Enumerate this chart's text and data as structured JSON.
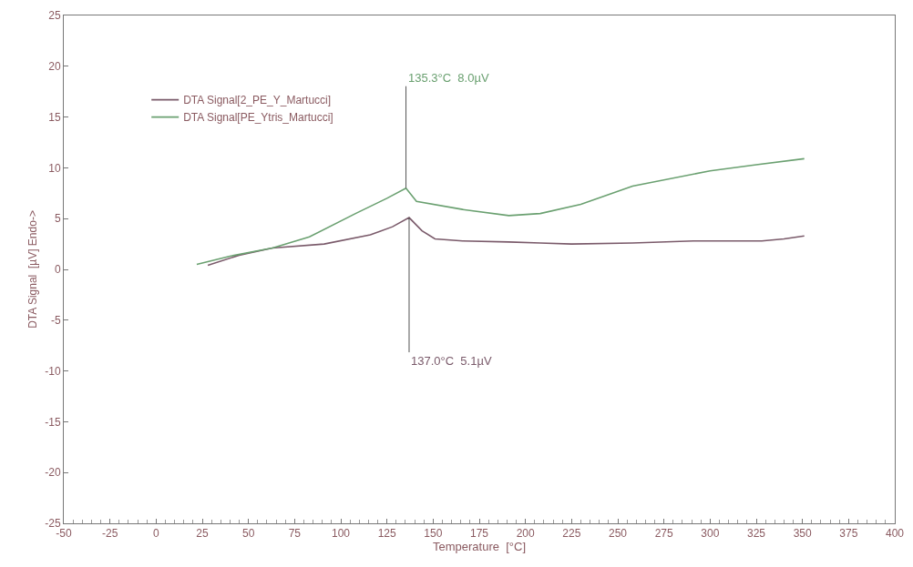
{
  "chart_data": {
    "type": "line",
    "xlabel": "Temperature  [°C]",
    "ylabel": "DTA Signal  [µV] Endo->",
    "xlim": [
      -50,
      400
    ],
    "xticks": [
      -50,
      -25,
      0,
      25,
      50,
      75,
      100,
      125,
      150,
      175,
      200,
      225,
      250,
      275,
      300,
      325,
      350,
      375,
      400
    ],
    "ylim": [
      -25,
      25
    ],
    "yticks": [
      -25,
      -20,
      -15,
      -10,
      -5,
      0,
      5,
      10,
      15,
      20,
      25
    ],
    "legend": "top left",
    "marker": "none",
    "line_style": "solid",
    "series": [
      {
        "name": "DTA Signal[2_PE_Y_Martucci]",
        "color": "#7a5a6a",
        "x": [
          28,
          45,
          63,
          91,
          116,
          128,
          137,
          144,
          151,
          166,
          191,
          208,
          225,
          258,
          291,
          328,
          340,
          351
        ],
        "values": [
          0.4,
          1.4,
          2.1,
          2.5,
          3.4,
          4.2,
          5.1,
          3.8,
          3.0,
          2.8,
          2.7,
          2.6,
          2.5,
          2.6,
          2.8,
          2.8,
          3.0,
          3.3
        ]
      },
      {
        "name": "DTA Signal[PE_Ytris_Martucci]",
        "color": "#6aa070",
        "x": [
          22,
          40,
          63,
          83,
          108,
          125,
          135.3,
          141,
          166,
          191,
          208,
          230,
          258,
          300,
          325,
          351
        ],
        "values": [
          0.5,
          1.3,
          2.1,
          3.2,
          5.5,
          7.0,
          8.0,
          6.7,
          5.9,
          5.3,
          5.5,
          6.4,
          8.2,
          9.7,
          10.3,
          10.9
        ]
      }
    ],
    "annotations": [
      {
        "text": "135.3°C  8.0µV",
        "x": 135.3,
        "y": 8.0
      },
      {
        "text": "137.0°C  5.1µV",
        "x": 137.0,
        "y": 5.1
      }
    ]
  }
}
